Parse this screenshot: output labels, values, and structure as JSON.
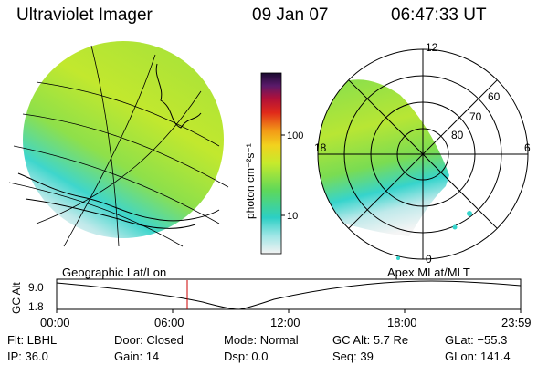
{
  "header": {
    "title": "Ultraviolet Imager",
    "date": "09 Jan 07",
    "time": "06:47:33 UT"
  },
  "colorbar": {
    "label": "photon cm⁻²s⁻¹",
    "ticks": [
      "100",
      "10"
    ],
    "scale": "log"
  },
  "polar": {
    "mlt_labels": [
      "12",
      "18",
      "6",
      "0"
    ],
    "lat_labels": [
      "60",
      "70",
      "80"
    ]
  },
  "timeline": {
    "left_label": "Geographic Lat/Lon",
    "right_label": "Apex MLat/MLT",
    "y_axis_label": "GC Alt",
    "y_ticks": [
      "9.0",
      "1.8"
    ],
    "x_ticks": [
      "00:00",
      "06:00",
      "12:00",
      "18:00",
      "23:59"
    ],
    "marker_color": "#cc0000"
  },
  "status": {
    "row1": [
      {
        "label": "Flt:",
        "value": "LBHL"
      },
      {
        "label": "Door:",
        "value": "Closed"
      },
      {
        "label": "Mode:",
        "value": "Normal"
      },
      {
        "label": "GC Alt:",
        "value": "5.7 Re"
      },
      {
        "label": "GLat:",
        "value": "−55.3"
      }
    ],
    "row2": [
      {
        "label": "IP:",
        "value": "36.0"
      },
      {
        "label": "Gain:",
        "value": "14"
      },
      {
        "label": "Dsp:",
        "value": "0.0"
      },
      {
        "label": "Seq:",
        "value": "39"
      },
      {
        "label": "GLon:",
        "value": "141.4"
      }
    ]
  },
  "colors": {
    "aurora_green": "#9be03c",
    "aurora_yellow": "#c8ea2a",
    "aurora_cyan": "#3ed6cc",
    "marker": "#cc0000"
  }
}
